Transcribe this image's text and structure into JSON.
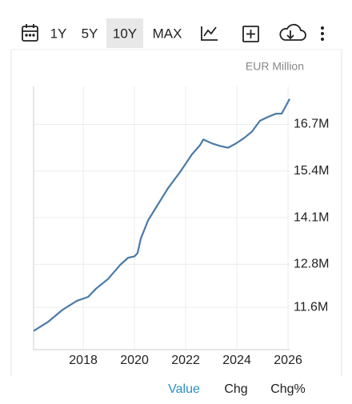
{
  "toolbar": {
    "ranges": [
      "1Y",
      "5Y",
      "10Y",
      "MAX"
    ],
    "active_range": "10Y"
  },
  "chart_data": {
    "type": "line",
    "unit_label": "EUR Million",
    "x": [
      2016.06,
      2016.62,
      2017.19,
      2017.75,
      2018.19,
      2018.5,
      2018.97,
      2019.44,
      2019.75,
      2020.0,
      2020.12,
      2020.25,
      2020.53,
      2020.84,
      2021.31,
      2021.78,
      2022.25,
      2022.56,
      2022.69,
      2023.03,
      2023.34,
      2023.66,
      2023.97,
      2024.28,
      2024.59,
      2024.9,
      2025.22,
      2025.53,
      2025.75,
      2025.94,
      2026.06
    ],
    "series": [
      {
        "name": "Value",
        "color": "#4a7aa8",
        "values": [
          10940000,
          11190000,
          11530000,
          11780000,
          11890000,
          12120000,
          12390000,
          12780000,
          12980000,
          13020000,
          13110000,
          13520000,
          14020000,
          14380000,
          14920000,
          15370000,
          15870000,
          16120000,
          16280000,
          16170000,
          16100000,
          16050000,
          16170000,
          16320000,
          16500000,
          16800000,
          16910000,
          17000000,
          17000000,
          17250000,
          17410000
        ]
      }
    ],
    "xlim": [
      2016.06,
      2026.06
    ],
    "xticks": [
      2018,
      2020,
      2022,
      2024,
      2026
    ],
    "ylim": [
      10420000,
      17760000
    ],
    "yticks": [
      {
        "value": 11600000,
        "label": "11.6M"
      },
      {
        "value": 12800000,
        "label": "12.8M"
      },
      {
        "value": 14100000,
        "label": "14.1M"
      },
      {
        "value": 15400000,
        "label": "15.4M"
      },
      {
        "value": 16700000,
        "label": "16.7M"
      }
    ],
    "grid": true
  },
  "tabs": [
    "Value",
    "Chg",
    "Chg%"
  ],
  "active_tab": "Value"
}
